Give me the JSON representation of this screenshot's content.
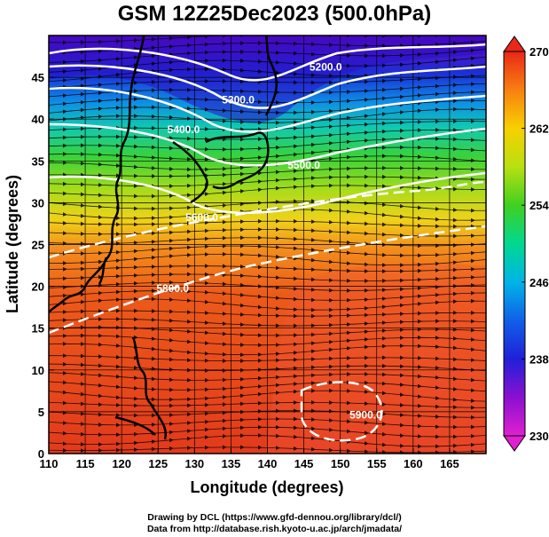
{
  "title": "GSM 12Z25Dec2023 (500.0hPa)",
  "xaxis": {
    "label": "Longitude (degrees)",
    "ticks": [
      "110",
      "115",
      "120",
      "125",
      "130",
      "135",
      "140",
      "145",
      "150",
      "155",
      "160",
      "165"
    ],
    "range": [
      110,
      170
    ]
  },
  "yaxis": {
    "label": "Latitude  (degrees)",
    "ticks": [
      "0",
      "5",
      "10",
      "15",
      "20",
      "25",
      "30",
      "35",
      "40",
      "45"
    ],
    "range": [
      0,
      50
    ]
  },
  "colorbar": {
    "tick_labels": [
      "230",
      "238",
      "246",
      "254",
      "262",
      "270"
    ],
    "range": [
      230,
      270
    ]
  },
  "contours": [
    {
      "label": "5200.0",
      "lon": 148,
      "lat": 45.8
    },
    {
      "label": "5300.0",
      "lon": 136,
      "lat": 41.9
    },
    {
      "label": "5400.0",
      "lon": 128.5,
      "lat": 38.3
    },
    {
      "label": "5500.0",
      "lon": 145,
      "lat": 34.1
    },
    {
      "label": "5600.0",
      "lon": 131,
      "lat": 27.8
    },
    {
      "label": "5800.0",
      "lon": 127,
      "lat": 19.3
    },
    {
      "label": "5900.0",
      "lon": 153.5,
      "lat": 4.2
    }
  ],
  "credits": {
    "line1": "Drawing by DCL (https://www.gfd-dennou.org/library/dcl/)",
    "line2": "Data from http://database.rish.kyoto-u.ac.jp/arch/jmadata/"
  },
  "colors": {
    "cold": "#6a00b8",
    "warm": "#e23a1c",
    "contour": "#ffffff",
    "coast": "#000000"
  }
}
